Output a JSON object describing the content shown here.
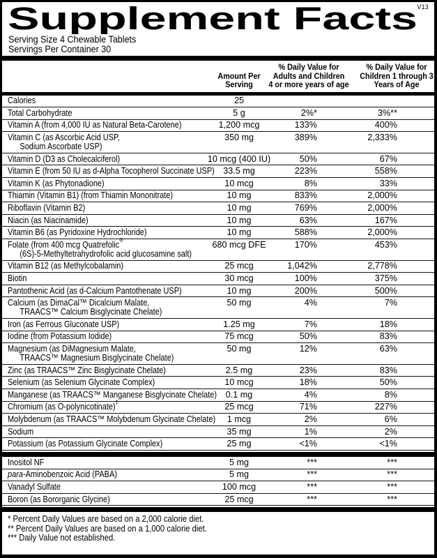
{
  "version": "V13",
  "title": "Supplement Facts",
  "serving": {
    "size": "Serving Size 4 Chewable Tablets",
    "per_container": "Servings Per Container 30"
  },
  "header_columns": {
    "amount": [
      "Amount Per",
      "Serving"
    ],
    "adults": [
      "% Daily Value for",
      "Adults and Children",
      "4 or more years of age"
    ],
    "children": [
      "% Daily Value for",
      "Children 1 through 3",
      "Years of Age"
    ]
  },
  "main_rows": [
    {
      "name": "Calories",
      "amount": "25",
      "adults": "",
      "children": ""
    },
    {
      "name": "Total Carbohydrate",
      "amount": "5 g",
      "adults": "2%*",
      "children": "3%**"
    },
    {
      "name": "Vitamin A (from 4,000 IU as Natural Beta-Carotene)",
      "amount": "1,200 mcg",
      "adults": "133%",
      "children": "400%"
    },
    {
      "name": "Vitamin C (as Ascorbic Acid USP,",
      "name2": "Sodium Ascorbate USP)",
      "amount": "350 mg",
      "adults": "389%",
      "children": "2,333%"
    },
    {
      "name": "Vitamin D (D3 as Cholecalciferol)",
      "amount": "10 mcg (400 IU)",
      "adults": "50%",
      "children": "67%"
    },
    {
      "name": "Vitamin E (from 50 IU as d-Alpha Tocopherol Succinate USP)",
      "amount": "33.5 mg",
      "adults": "223%",
      "children": "558%"
    },
    {
      "name": "Vitamin K (as Phytonadione)",
      "amount": "10 mcg",
      "adults": "8%",
      "children": "33%"
    },
    {
      "name": "Thiamin (Vitamin B1) (from Thiamin Mononitrate)",
      "amount": "10 mg",
      "adults": "833%",
      "children": "2,000%"
    },
    {
      "name": "Riboflavin (Vitamin B2)",
      "amount": "10 mg",
      "adults": "769%",
      "children": "2,000%"
    },
    {
      "name": "Niacin (as Niacinamide)",
      "amount": "10 mg",
      "adults": "63%",
      "children": "167%"
    },
    {
      "name": "Vitamin B6 (as Pyridoxine Hydrochloride)",
      "amount": "10 mg",
      "adults": "588%",
      "children": "2,000%"
    },
    {
      "name": "Folate (from 400 mcg Quatrefolic®",
      "name2": "(6S)-5-Methyltetrahydrofolic acid glucosamine salt)",
      "amount": "680 mcg DFE",
      "adults": "170%",
      "children": "453%"
    },
    {
      "name": "Vitamin B12 (as Methylcobalamin)",
      "amount": "25 mcg",
      "adults": "1,042%",
      "children": "2,778%"
    },
    {
      "name": "Biotin",
      "amount": "30 mcg",
      "adults": "100%",
      "children": "375%"
    },
    {
      "name": "Pantothenic Acid (as d-Calcium Pantothenate USP)",
      "amount": "10 mg",
      "adults": "200%",
      "children": "500%"
    },
    {
      "name": "Calcium (as DimaCal™ Dicalcium Malate,",
      "name2": "TRAACS™ Calcium Bisglycinate Chelate)",
      "amount": "50 mg",
      "adults": "4%",
      "children": "7%"
    },
    {
      "name": "Iron (as Ferrous Gluconate USP)",
      "amount": "1.25 mg",
      "adults": "7%",
      "children": "18%"
    },
    {
      "name": "Iodine (from Potassium Iodide)",
      "amount": "75 mcg",
      "adults": "50%",
      "children": "83%"
    },
    {
      "name": "Magnesium (as DiMagnesium Malate,",
      "name2": "TRAACS™ Magnesium Bisglycinate Chelate)",
      "amount": "50 mg",
      "adults": "12%",
      "children": "63%"
    },
    {
      "name": "Zinc (as TRAACS™ Zinc Bisglycinate Chelate)",
      "amount": "2.5 mg",
      "adults": "23%",
      "children": "83%"
    },
    {
      "name": "Selenium (as Selenium Glycinate Complex)",
      "amount": "10 mcg",
      "adults": "18%",
      "children": "50%"
    },
    {
      "name": "Manganese (as TRAACS™ Manganese Bisglycinate Chelate)",
      "amount": "0.1 mg",
      "adults": "4%",
      "children": "8%"
    },
    {
      "name": "Chromium (as O-polynicotinate)‡",
      "amount": "25 mcg",
      "adults": "71%",
      "children": "227%"
    },
    {
      "name": "Molybdenum (as TRAACS™ Molybdenum Glycinate Chelate)",
      "amount": "1 mcg",
      "adults": "2%",
      "children": "6%"
    },
    {
      "name": "Sodium",
      "amount": "35 mg",
      "adults": "1%",
      "children": "2%"
    },
    {
      "name": "Potassium (as Potassium Glycinate Complex)",
      "amount": "25 mg",
      "adults": "<1%",
      "children": "<1%"
    }
  ],
  "other_rows": [
    {
      "name": "Inositol NF",
      "amount": "5 mg",
      "adults": "***",
      "children": "***"
    },
    {
      "italic_prefix": "para",
      "name": "-Aminobenzoic Acid (PABA)",
      "amount": "5 mg",
      "adults": "***",
      "children": "***"
    },
    {
      "name": "Vanadyl Sulfate",
      "amount": "100 mcg",
      "adults": "***",
      "children": "***"
    },
    {
      "name": "Boron (as Bororganic Glycine)",
      "amount": "25 mcg",
      "adults": "***",
      "children": "***"
    }
  ],
  "footnotes": [
    "* Percent Daily Values are based on a 2,000 calorie diet.",
    "** Percent Daily Values are based on a 1,000 calorie diet.",
    "*** Daily Value not established."
  ]
}
